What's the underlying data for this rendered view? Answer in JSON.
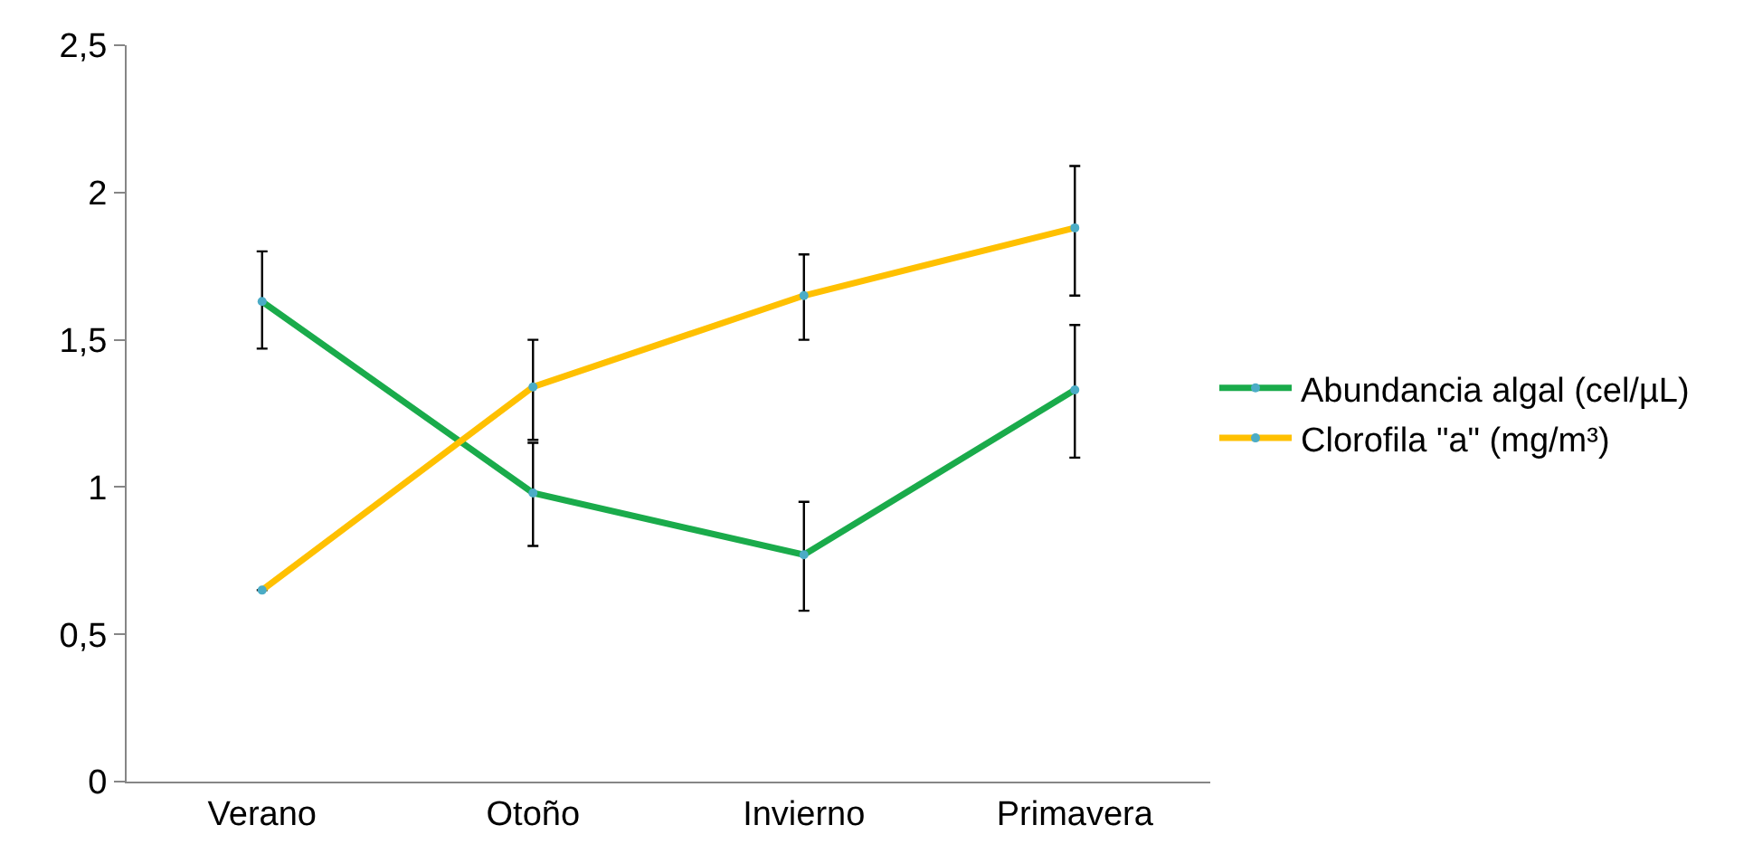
{
  "chart_data": {
    "type": "line",
    "categories": [
      "Verano",
      "Otoño",
      "Invierno",
      "Primavera"
    ],
    "series": [
      {
        "name": "Abundancia algal (cel/µL)",
        "color": "#1aab4b",
        "values": [
          1.63,
          0.98,
          0.77,
          1.33
        ],
        "errors": [
          [
            1.47,
            1.8
          ],
          [
            0.8,
            1.15
          ],
          [
            0.58,
            0.95
          ],
          [
            1.1,
            1.55
          ]
        ]
      },
      {
        "name": "Clorofila \"a\" (mg/m³)",
        "color": "#ffc000",
        "values": [
          0.65,
          1.34,
          1.65,
          1.88
        ],
        "errors": [
          null,
          [
            1.16,
            1.5
          ],
          [
            1.5,
            1.79
          ],
          [
            1.65,
            2.09
          ]
        ]
      }
    ],
    "ylim": [
      0,
      2.5
    ],
    "yticks": [
      0,
      {
        "value": 0.5,
        "label": "0,5"
      },
      1,
      {
        "value": 1.5,
        "label": "1,5"
      },
      2,
      {
        "value": 2.5,
        "label": "2,5"
      }
    ],
    "grid": false,
    "legend": "right",
    "marker": "circle",
    "line_style": "solid"
  }
}
